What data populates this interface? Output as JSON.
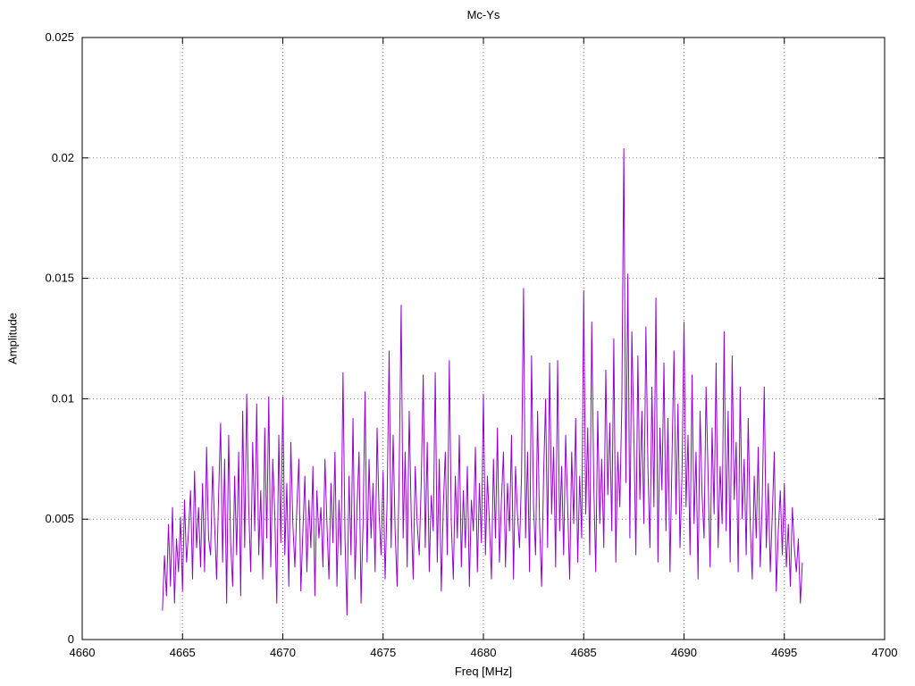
{
  "chart_data": {
    "type": "line",
    "title": "Mc-Ys",
    "xlabel": "Freq [MHz]",
    "ylabel": "Amplitude",
    "xlim": [
      4660,
      4700
    ],
    "ylim": [
      0,
      0.025
    ],
    "x_ticks": [
      4660,
      4665,
      4670,
      4675,
      4680,
      4685,
      4690,
      4695,
      4700
    ],
    "x_tick_labels": [
      "4660",
      "4665",
      "4670",
      "4675",
      "4680",
      "4685",
      "4690",
      "4695",
      "4700"
    ],
    "y_ticks": [
      0,
      0.005,
      0.01,
      0.015,
      0.02,
      0.025
    ],
    "y_tick_labels": [
      "0",
      "0.005",
      "0.01",
      "0.015",
      "0.02",
      "0.025"
    ],
    "grid": true,
    "grid_style": "dotted",
    "grid_color": "#808080",
    "legend": "none",
    "background": "#ffffff",
    "series": [
      {
        "name": "Mc-Ys",
        "color": "#9400d3",
        "x_start": 4664.0,
        "x_step": 0.1,
        "x_end": 4695.9,
        "peak": {
          "x": 4687.0,
          "y": 0.0204
        },
        "values": [
          0.0012,
          0.0035,
          0.0018,
          0.0048,
          0.0022,
          0.0055,
          0.0015,
          0.0042,
          0.0028,
          0.0051,
          0.002,
          0.0058,
          0.0032,
          0.0045,
          0.0062,
          0.0025,
          0.007,
          0.0038,
          0.0055,
          0.003,
          0.0065,
          0.0028,
          0.008,
          0.0042,
          0.0035,
          0.0072,
          0.0048,
          0.0025,
          0.006,
          0.009,
          0.0032,
          0.0075,
          0.0015,
          0.0085,
          0.004,
          0.0022,
          0.0068,
          0.0035,
          0.0078,
          0.0018,
          0.0095,
          0.0038,
          0.0102,
          0.0055,
          0.0028,
          0.0082,
          0.0045,
          0.0098,
          0.0035,
          0.0062,
          0.0025,
          0.0088,
          0.0042,
          0.0101,
          0.003,
          0.0075,
          0.0052,
          0.0015,
          0.0085,
          0.004,
          0.0101,
          0.0035,
          0.0065,
          0.0022,
          0.0082,
          0.0048,
          0.003,
          0.0055,
          0.0075,
          0.002,
          0.0045,
          0.0068,
          0.0028,
          0.0058,
          0.0038,
          0.0072,
          0.0018,
          0.0062,
          0.0042,
          0.0055,
          0.003,
          0.0075,
          0.0048,
          0.0025,
          0.0065,
          0.004,
          0.0078,
          0.0022,
          0.0058,
          0.0035,
          0.0111,
          0.0042,
          0.001,
          0.0068,
          0.0035,
          0.0092,
          0.0025,
          0.0055,
          0.0078,
          0.0015,
          0.0048,
          0.0103,
          0.0032,
          0.0075,
          0.0042,
          0.0065,
          0.0028,
          0.0088,
          0.0052,
          0.0035,
          0.007,
          0.0025,
          0.0058,
          0.012,
          0.0038,
          0.0085,
          0.0045,
          0.0022,
          0.0068,
          0.0139,
          0.0042,
          0.0078,
          0.003,
          0.0095,
          0.0052,
          0.0025,
          0.0072,
          0.0048,
          0.0035,
          0.0065,
          0.011,
          0.0038,
          0.0082,
          0.0028,
          0.006,
          0.0045,
          0.0111,
          0.0032,
          0.0075,
          0.002,
          0.0055,
          0.0078,
          0.0035,
          0.0116,
          0.0048,
          0.0025,
          0.0068,
          0.0042,
          0.0085,
          0.003,
          0.0062,
          0.0038,
          0.0072,
          0.0022,
          0.0058,
          0.0045,
          0.008,
          0.0028,
          0.0065,
          0.004,
          0.0102,
          0.0035,
          0.0068,
          0.0048,
          0.0025,
          0.0075,
          0.0042,
          0.0088,
          0.0032,
          0.0058,
          0.0078,
          0.003,
          0.0065,
          0.0045,
          0.0085,
          0.0025,
          0.0072,
          0.0052,
          0.0038,
          0.0068,
          0.0146,
          0.0042,
          0.0078,
          0.0028,
          0.0118,
          0.0055,
          0.0035,
          0.0095,
          0.0048,
          0.0022,
          0.0068,
          0.01,
          0.0038,
          0.0115,
          0.0052,
          0.008,
          0.003,
          0.0116,
          0.0045,
          0.0072,
          0.0035,
          0.0085,
          0.0055,
          0.0025,
          0.0078,
          0.0048,
          0.0092,
          0.0032,
          0.0068,
          0.0042,
          0.0145,
          0.0052,
          0.0088,
          0.0035,
          0.0132,
          0.0065,
          0.0028,
          0.0095,
          0.0048,
          0.0075,
          0.0038,
          0.0112,
          0.006,
          0.009,
          0.0045,
          0.0125,
          0.0032,
          0.0078,
          0.0055,
          0.0098,
          0.0204,
          0.0065,
          0.0152,
          0.0042,
          0.0128,
          0.0085,
          0.0035,
          0.0118,
          0.0058,
          0.0095,
          0.0048,
          0.013,
          0.0072,
          0.0038,
          0.0105,
          0.0055,
          0.0142,
          0.0032,
          0.0088,
          0.0062,
          0.0115,
          0.0045,
          0.0092,
          0.0028,
          0.0075,
          0.012,
          0.0052,
          0.0098,
          0.0038,
          0.0068,
          0.0132,
          0.0055,
          0.0085,
          0.0035,
          0.011,
          0.0048,
          0.0078,
          0.0025,
          0.0095,
          0.006,
          0.0042,
          0.0105,
          0.0068,
          0.003,
          0.0088,
          0.0052,
          0.0115,
          0.0038,
          0.0072,
          0.0048,
          0.0128,
          0.0045,
          0.0095,
          0.0032,
          0.0118,
          0.0058,
          0.0082,
          0.0028,
          0.0105,
          0.005,
          0.0075,
          0.0035,
          0.0092,
          0.0048,
          0.0025,
          0.0068,
          0.0042,
          0.008,
          0.003,
          0.0058,
          0.0105,
          0.0038,
          0.0065,
          0.0028,
          0.0052,
          0.0078,
          0.002,
          0.0045,
          0.0062,
          0.0035,
          0.0065,
          0.003,
          0.0048,
          0.0022,
          0.0055,
          0.0038,
          0.0028,
          0.0042,
          0.0015,
          0.0032
        ]
      }
    ]
  }
}
